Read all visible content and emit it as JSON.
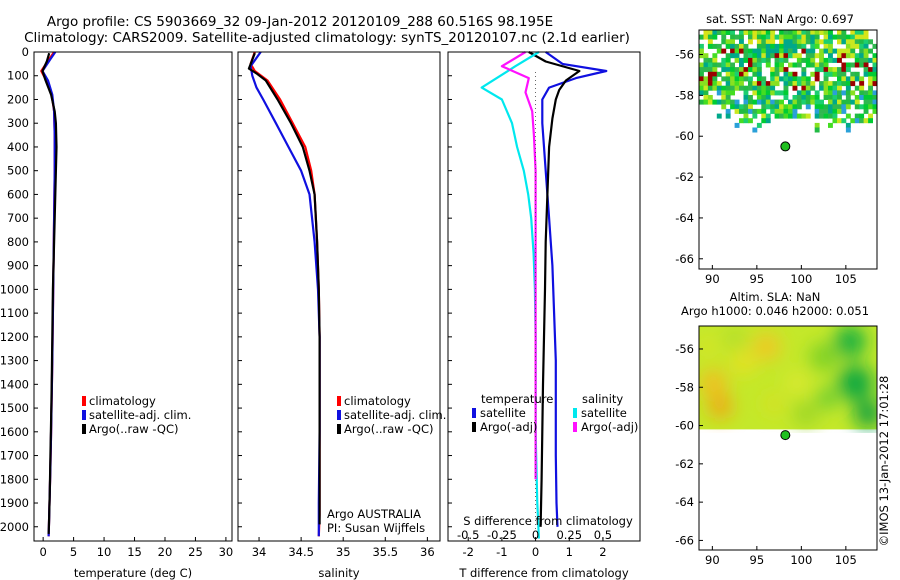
{
  "header": {
    "title_line1": "Argo profile: CS 5903669_32 09-Jan-2012 20120109_288 60.516S 98.195E",
    "title_line2": "Climatology: CARS2009. Satellite-adjusted climatology: synTS_20120107.nc (2.1d earlier)"
  },
  "stamp": "©IMOS 13-Jan-2012 17:01:28",
  "colors": {
    "climatology": "#ff0000",
    "satellite": "#1010e0",
    "argo": "#000000",
    "cyan": "#00e8ee",
    "magenta": "#ff10ff",
    "land_green": "#22aa44",
    "argo_marker": "#20c020"
  },
  "chart_data": [
    {
      "id": "temperature",
      "type": "line",
      "xlabel": "temperature (deg C)",
      "xlim": [
        -1.5,
        31
      ],
      "xticks": [
        0,
        5,
        10,
        15,
        20,
        25,
        30
      ],
      "ylim": [
        2060,
        0
      ],
      "yticks": [
        0,
        100,
        200,
        300,
        400,
        500,
        600,
        700,
        800,
        900,
        1000,
        1100,
        1200,
        1300,
        1400,
        1500,
        1600,
        1700,
        1800,
        1900,
        2000
      ],
      "legend": [
        "climatology",
        "satellite-adj. clim.",
        "Argo(..raw -QC)"
      ],
      "series": [
        {
          "name": "climatology",
          "color": "climatology",
          "x": [
            1.8,
            1.0,
            -0.3,
            0.5,
            1.4,
            1.8,
            1.9,
            1.9,
            1.8,
            1.7,
            1.6,
            1.5,
            1.4,
            1.3,
            1.2,
            1.1,
            1.0,
            0.95,
            0.9
          ],
          "y": [
            0,
            30,
            80,
            120,
            180,
            250,
            350,
            500,
            700,
            900,
            1100,
            1300,
            1450,
            1600,
            1750,
            1850,
            1950,
            2000,
            2040
          ]
        },
        {
          "name": "satellite-adj. clim.",
          "color": "satellite",
          "x": [
            2.0,
            1.2,
            -0.1,
            0.8,
            1.5,
            1.8,
            1.9,
            1.9,
            1.8,
            1.7,
            1.6,
            1.5,
            1.4,
            1.3,
            1.2,
            1.1,
            1.0,
            0.95,
            0.9
          ],
          "y": [
            0,
            30,
            80,
            120,
            180,
            250,
            350,
            500,
            700,
            900,
            1100,
            1300,
            1450,
            1600,
            1750,
            1850,
            1950,
            2000,
            2040
          ]
        },
        {
          "name": "Argo(..raw -QC)",
          "color": "argo",
          "x": [
            1.0,
            0.6,
            -0.1,
            0.4,
            1.3,
            1.9,
            2.1,
            2.2,
            2.0,
            1.8,
            1.6,
            1.5,
            1.4,
            1.3,
            1.2,
            1.1,
            1.0,
            0.95,
            0.9
          ],
          "y": [
            5,
            40,
            80,
            120,
            180,
            250,
            300,
            400,
            600,
            800,
            1000,
            1200,
            1400,
            1550,
            1700,
            1850,
            1950,
            2000,
            2030
          ]
        }
      ]
    },
    {
      "id": "salinity",
      "type": "line",
      "xlabel": "salinity",
      "xlim": [
        33.75,
        36.15
      ],
      "xticks": [
        34,
        34.5,
        35,
        35.5,
        36
      ],
      "ylim": [
        2060,
        0
      ],
      "legend": [
        "climatology",
        "satellite-adj. clim.",
        "Argo(..raw -QC)"
      ],
      "note_lines": [
        "Argo AUSTRALIA",
        "PI: Susan Wijffels"
      ],
      "series": [
        {
          "name": "climatology",
          "color": "climatology",
          "x": [
            33.95,
            33.9,
            33.95,
            34.1,
            34.25,
            34.4,
            34.55,
            34.62,
            34.66,
            34.69,
            34.71,
            34.72,
            34.72,
            34.72,
            34.72,
            34.72,
            34.71
          ],
          "y": [
            0,
            50,
            80,
            120,
            200,
            300,
            400,
            500,
            600,
            800,
            1000,
            1200,
            1400,
            1600,
            1800,
            1950,
            2040
          ]
        },
        {
          "name": "satellite-adj. clim.",
          "color": "satellite",
          "x": [
            34.02,
            33.9,
            33.92,
            33.97,
            34.05,
            34.2,
            34.35,
            34.5,
            34.6,
            34.66,
            34.7,
            34.72,
            34.72,
            34.72,
            34.71,
            34.71
          ],
          "y": [
            0,
            60,
            100,
            150,
            200,
            300,
            400,
            500,
            600,
            800,
            1000,
            1200,
            1400,
            1600,
            1900,
            2040
          ]
        },
        {
          "name": "Argo(..raw -QC)",
          "color": "argo",
          "x": [
            33.95,
            33.88,
            33.97,
            34.08,
            34.22,
            34.38,
            34.52,
            34.6,
            34.66,
            34.69,
            34.71,
            34.72,
            34.72,
            34.72,
            34.72,
            34.72
          ],
          "y": [
            5,
            70,
            90,
            120,
            200,
            300,
            400,
            500,
            600,
            800,
            1000,
            1200,
            1400,
            1600,
            1800,
            1990
          ]
        }
      ]
    },
    {
      "id": "difference",
      "type": "line",
      "xlabel": "T difference from climatology",
      "top_label": "S difference from climatology",
      "xlim": [
        -2.6,
        3.1
      ],
      "xticks": [
        -2,
        -1,
        0,
        1,
        2
      ],
      "s_xticks": [
        "-0.5",
        "-0.25",
        "0",
        "0.25",
        "0.5"
      ],
      "ylim": [
        2060,
        0
      ],
      "legend_headers": [
        "temperature",
        "salinity"
      ],
      "legend": [
        "satellite",
        "Argo(-adj)",
        "satellite",
        "Argo(-adj)"
      ],
      "series": [
        {
          "name": "temperature satellite",
          "color": "satellite",
          "x": [
            0.3,
            0.8,
            2.1,
            1.2,
            0.4,
            0.2,
            0.2,
            0.3,
            0.4,
            0.5,
            0.55,
            0.6,
            0.6,
            0.6,
            0.62,
            0.65
          ],
          "y": [
            0,
            50,
            80,
            110,
            150,
            200,
            300,
            500,
            700,
            900,
            1100,
            1300,
            1500,
            1700,
            1900,
            2000
          ]
        },
        {
          "name": "temperature Argo(-adj)",
          "color": "argo",
          "x": [
            -0.2,
            0.3,
            1.3,
            0.9,
            0.7,
            0.6,
            0.5,
            0.4,
            0.35,
            0.3,
            0.28,
            0.25,
            0.22,
            0.2,
            0.18,
            0.15
          ],
          "y": [
            0,
            40,
            80,
            120,
            160,
            200,
            280,
            400,
            600,
            800,
            1000,
            1200,
            1400,
            1600,
            1800,
            2000
          ]
        },
        {
          "name": "salinity satellite",
          "color": "cyan",
          "x": [
            0.1,
            -0.6,
            -1.6,
            -1.0,
            -0.7,
            -0.55,
            -0.35,
            -0.22,
            -0.13,
            -0.06,
            -0.02,
            0.0,
            0.0,
            0.0,
            0.05,
            0.1
          ],
          "y": [
            0,
            60,
            150,
            200,
            300,
            400,
            500,
            600,
            700,
            850,
            1000,
            1200,
            1400,
            1600,
            1900,
            2050
          ]
        },
        {
          "name": "salinity Argo(-adj)",
          "color": "magenta",
          "x": [
            -0.3,
            -1.0,
            -0.2,
            -0.3,
            -0.1,
            -0.05,
            0.0,
            0.0,
            0.0,
            0.0,
            0.0,
            0.0,
            0.0,
            0.0
          ],
          "y": [
            0,
            60,
            110,
            170,
            250,
            350,
            500,
            700,
            900,
            1100,
            1300,
            1500,
            1700,
            1800
          ]
        }
      ]
    },
    {
      "id": "sst_map",
      "type": "heatmap",
      "title": "sat. SST: NaN Argo: 0.697",
      "xticks": [
        90,
        95,
        100,
        105
      ],
      "yticks": [
        -56,
        -58,
        -60,
        -62,
        -64,
        -66
      ],
      "xlim": [
        88.5,
        108.5
      ],
      "ylim": [
        -66.5,
        -54.8
      ],
      "argo_position": [
        98.2,
        -60.5
      ],
      "data_extent": {
        "x": [
          88.5,
          108.5
        ],
        "y": [
          -59.8,
          -54.8
        ]
      }
    },
    {
      "id": "sla_map",
      "type": "heatmap",
      "title_line1": "Altim. SLA: NaN",
      "title_line2": "Argo h1000: 0.046 h2000: 0.051",
      "xticks": [
        90,
        95,
        100,
        105
      ],
      "yticks": [
        -56,
        -58,
        -60,
        -62,
        -64,
        -66
      ],
      "xlim": [
        88.5,
        108.5
      ],
      "ylim": [
        -66.5,
        -54.8
      ],
      "argo_position": [
        98.2,
        -60.5
      ],
      "data_extent": {
        "x": [
          88.5,
          108.5
        ],
        "y": [
          -60.2,
          -54.8
        ]
      }
    }
  ]
}
